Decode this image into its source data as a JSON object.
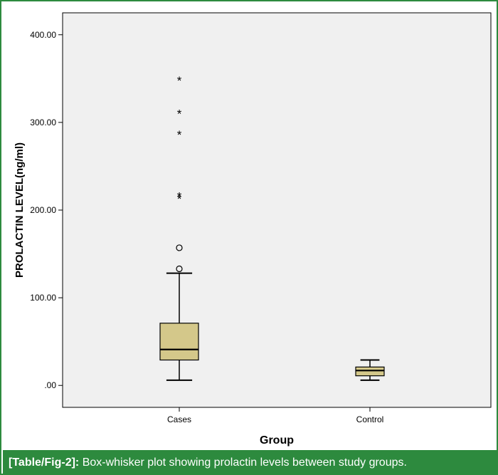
{
  "caption": {
    "label": "[Table/Fig-2]:",
    "text": " Box-whisker plot showing prolactin levels between study groups."
  },
  "colors": {
    "frame": "#2d8a3e",
    "plot_background": "#f0f0f0",
    "box_fill": "#d4c88a"
  },
  "chart_data": {
    "type": "box",
    "title": "",
    "xlabel": "Group",
    "ylabel": "PROLACTIN LEVEL(ng/ml)",
    "ylim": [
      -25,
      425
    ],
    "yticks": [
      0,
      100,
      200,
      300,
      400
    ],
    "ytick_labels": [
      ".00",
      "100.00",
      "200.00",
      "300.00",
      "400.00"
    ],
    "grid": false,
    "categories": [
      "Cases",
      "Control"
    ],
    "boxes": [
      {
        "category": "Cases",
        "whisker_low": 6,
        "q1": 29,
        "median": 41,
        "q3": 71,
        "whisker_high": 128,
        "outliers": [
          133,
          157
        ],
        "extremes": [
          213,
          216,
          286,
          310,
          348
        ]
      },
      {
        "category": "Control",
        "whisker_low": 6,
        "q1": 11,
        "median": 17,
        "q3": 21,
        "whisker_high": 29,
        "outliers": [],
        "extremes": []
      }
    ]
  }
}
